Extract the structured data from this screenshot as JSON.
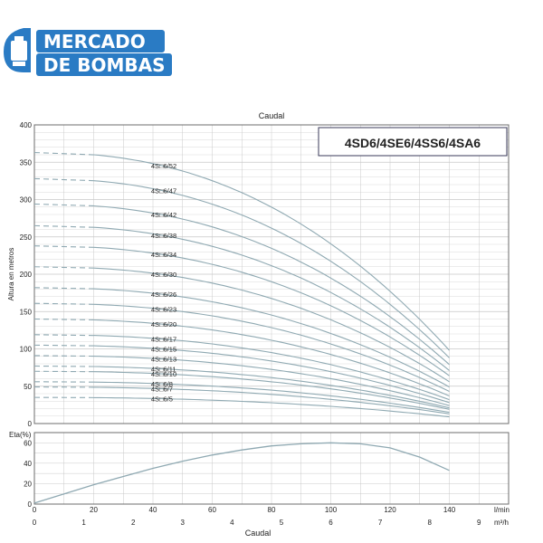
{
  "logo": {
    "line1": "MERCADO",
    "line2": "DE BOMBAS",
    "brand_color": "#2a7bc4",
    "icon": "water-pump-icon"
  },
  "colors": {
    "curve": "#8fa9b2",
    "frame": "#6d6d6d",
    "grid": "#c8c8c8",
    "title_border": "#3a3a5a"
  },
  "chart_data": [
    {
      "type": "line",
      "title": "4SD6/4SE6/4SS6/4SA6",
      "top_label": "Caudal",
      "ylabel": "Altura en metros",
      "xlim": [
        0,
        160
      ],
      "ylim": [
        0,
        400
      ],
      "y_ticks": [
        "0",
        "50",
        "100",
        "150",
        "200",
        "250",
        "300",
        "350",
        "400"
      ],
      "x_ticks": [
        0,
        20,
        40,
        60,
        80,
        100,
        120,
        140
      ],
      "dashed_until_x": 20,
      "curve_end_x": 140,
      "grid": true,
      "series": [
        {
          "name": "4S□6/52",
          "shutoff": 363,
          "end": 98
        },
        {
          "name": "4S□6/47",
          "shutoff": 328,
          "end": 88
        },
        {
          "name": "4S□6/42",
          "shutoff": 294,
          "end": 79
        },
        {
          "name": "4S□6/38",
          "shutoff": 265,
          "end": 71
        },
        {
          "name": "4S□6/34",
          "shutoff": 238,
          "end": 64
        },
        {
          "name": "4S□6/30",
          "shutoff": 210,
          "end": 56
        },
        {
          "name": "4S□6/26",
          "shutoff": 182,
          "end": 49
        },
        {
          "name": "4S□6/23",
          "shutoff": 161,
          "end": 43
        },
        {
          "name": "4S□6/20",
          "shutoff": 140,
          "end": 37
        },
        {
          "name": "4S□6/17",
          "shutoff": 119,
          "end": 32
        },
        {
          "name": "4S□6/15",
          "shutoff": 105,
          "end": 28
        },
        {
          "name": "4S□6/13",
          "shutoff": 91,
          "end": 24
        },
        {
          "name": "4S□6/11",
          "shutoff": 77,
          "end": 21
        },
        {
          "name": "4S□6/10",
          "shutoff": 70,
          "end": 19
        },
        {
          "name": "4S□6/8",
          "shutoff": 56,
          "end": 15
        },
        {
          "name": "4S□6/7",
          "shutoff": 49,
          "end": 13
        },
        {
          "name": "4S□6/5",
          "shutoff": 35,
          "end": 9
        }
      ]
    },
    {
      "type": "line",
      "ylabel": "Eta(%)",
      "xlabel": "Caudal",
      "xlim": [
        0,
        160
      ],
      "ylim": [
        0,
        70
      ],
      "y_ticks": [
        "0",
        "20",
        "40",
        "60"
      ],
      "x_ticks_lmin": [
        0,
        20,
        40,
        60,
        80,
        100,
        120,
        140
      ],
      "x_unit_lmin": "l/min",
      "x_ticks_m3h": [
        "0",
        "1",
        "2",
        "3",
        "4",
        "5",
        "6",
        "7",
        "8",
        "9"
      ],
      "x_unit_m3h": "m³/h",
      "grid": true,
      "efficiency_curve": {
        "x": [
          0,
          10,
          20,
          30,
          40,
          50,
          60,
          70,
          80,
          90,
          100,
          110,
          120,
          130,
          140
        ],
        "y": [
          1,
          10,
          19,
          27,
          35,
          42,
          48,
          53,
          57,
          59,
          60,
          59,
          55,
          46,
          33
        ]
      }
    }
  ]
}
